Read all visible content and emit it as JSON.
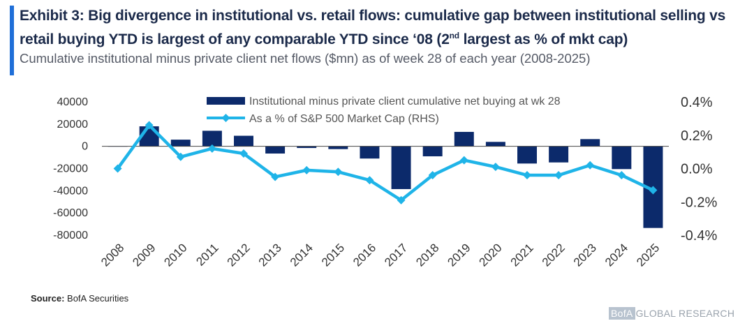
{
  "header": {
    "title_part1": "Exhibit 3: Big divergence in institutional vs. retail flows: cumulative gap between institutional selling vs retail buying YTD is largest of any comparable YTD since ‘08 (2",
    "title_sup": "nd",
    "title_part2": " largest as % of mkt cap)",
    "subtitle": "Cumulative institutional minus private client net flows ($mn) as of week 28 of each year (2008-2025)"
  },
  "footer": {
    "source_label": "Source:",
    "source_text": " BofA Securities",
    "brand_box": "BofA",
    "brand_text": "GLOBAL RESEARCH"
  },
  "colors": {
    "bar": "#0c2a6b",
    "line": "#1fb4e8",
    "accent": "#1f6fd8"
  },
  "chart_data": {
    "type": "bar",
    "categories": [
      "2008",
      "2009",
      "2010",
      "2011",
      "2012",
      "2013",
      "2014",
      "2015",
      "2016",
      "2017",
      "2018",
      "2019",
      "2020",
      "2021",
      "2022",
      "2023",
      "2024",
      "2025"
    ],
    "series": [
      {
        "name": "Institutional minus private client cumulative net buying at wk 28",
        "type": "bar",
        "axis": "left",
        "values": [
          0,
          18000,
          6000,
          14000,
          9500,
          -6500,
          -1500,
          -2500,
          -11000,
          -38500,
          -9000,
          13000,
          4000,
          -15500,
          -14500,
          6500,
          -20500,
          -73500
        ]
      },
      {
        "name": "As a % of S&P 500 Market Cap (RHS)",
        "type": "line",
        "axis": "right",
        "values": [
          0.0,
          0.26,
          0.07,
          0.12,
          0.09,
          -0.05,
          -0.01,
          -0.02,
          -0.07,
          -0.19,
          -0.04,
          0.05,
          0.01,
          -0.04,
          -0.04,
          0.02,
          -0.04,
          -0.13
        ]
      }
    ],
    "y_left": {
      "ylim": [
        -80000,
        40000
      ],
      "ticks": [
        40000,
        20000,
        0,
        -20000,
        -40000,
        -60000,
        -80000
      ],
      "tick_labels": [
        "40000",
        "20000",
        "0",
        "-20000",
        "-40000",
        "-60000",
        "-80000"
      ]
    },
    "y_right": {
      "ylim": [
        -0.4,
        0.4
      ],
      "ticks": [
        0.4,
        0.2,
        0.0,
        -0.2,
        -0.4
      ],
      "tick_labels": [
        "0.4%",
        "0.2%",
        "0.0%",
        "-0.2%",
        "-0.4%"
      ]
    },
    "legend_position": "top-center",
    "grid": false
  }
}
